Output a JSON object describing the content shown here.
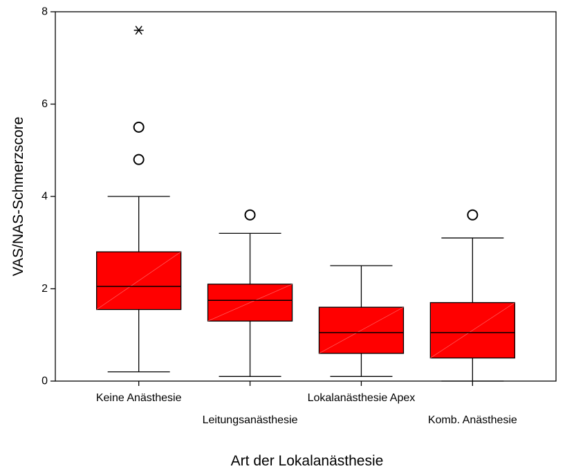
{
  "chart_data": {
    "type": "boxplot",
    "xlabel": "Art der Lokalanästhesie",
    "ylabel": "VAS/NAS-Schmerzscore",
    "ylim": [
      0,
      8
    ],
    "yticks": [
      "0",
      "2",
      "4",
      "6",
      "8"
    ],
    "grid": false,
    "box_color": "#ff0000",
    "categories": [
      "Keine Anästhesie",
      "Leitungsanästhesie",
      "Lokalanästhesie Apex",
      "Komb. Anästhesie"
    ],
    "boxes": [
      {
        "min": 0.2,
        "q1": 1.55,
        "median": 2.05,
        "q3": 2.8,
        "max": 4.0,
        "outliers": [
          4.8,
          5.5
        ],
        "extremes": [
          7.6
        ]
      },
      {
        "min": 0.1,
        "q1": 1.3,
        "median": 1.75,
        "q3": 2.1,
        "max": 3.2,
        "outliers": [
          3.6
        ],
        "extremes": []
      },
      {
        "min": 0.1,
        "q1": 0.6,
        "median": 1.05,
        "q3": 1.6,
        "max": 2.5,
        "outliers": [],
        "extremes": []
      },
      {
        "min": 0.0,
        "q1": 0.5,
        "median": 1.05,
        "q3": 1.7,
        "max": 3.1,
        "outliers": [
          3.6
        ],
        "extremes": []
      }
    ]
  }
}
